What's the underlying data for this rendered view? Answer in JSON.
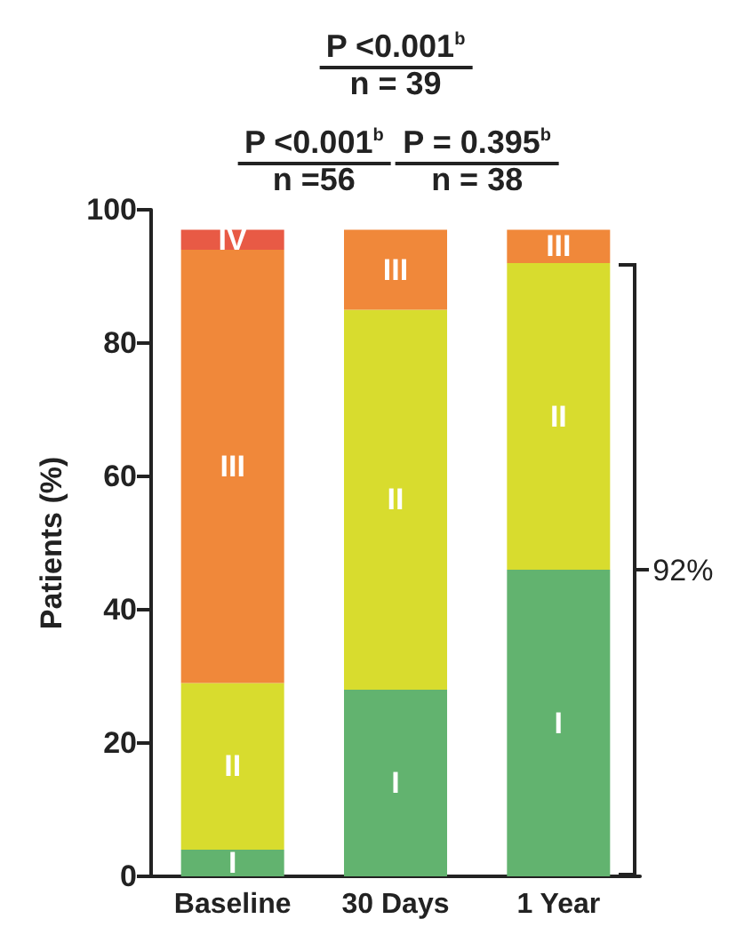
{
  "chart_data": {
    "type": "bar",
    "stacked": true,
    "ylabel": "Patients (%)",
    "categories": [
      "Baseline",
      "30 Days",
      "1 Year"
    ],
    "series": [
      {
        "name": "I",
        "color": "#62b36f",
        "values": [
          4,
          28,
          46
        ]
      },
      {
        "name": "II",
        "color": "#d8dc2e",
        "values": [
          25,
          57,
          46
        ]
      },
      {
        "name": "III",
        "color": "#f0883a",
        "values": [
          65,
          12,
          5
        ]
      },
      {
        "name": "IV",
        "color": "#e85a45",
        "values": [
          3,
          null,
          null
        ]
      }
    ],
    "ylim": [
      0,
      100
    ],
    "yticks": [
      0,
      20,
      40,
      60,
      80,
      100
    ],
    "grid": false,
    "legend": false,
    "annotations": [
      "P <0.001$^{b}$",
      "n = 39",
      "P <0.001$^{b}$",
      "n =56",
      "P = 0.395$^{b}$",
      "n = 38",
      "92%"
    ]
  }
}
